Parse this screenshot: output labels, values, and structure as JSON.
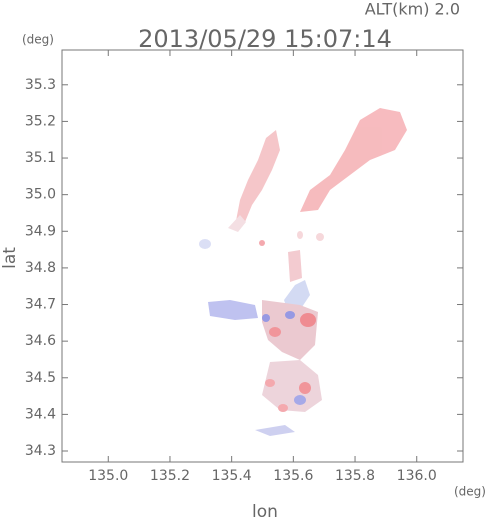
{
  "chart_data": {
    "type": "map",
    "title": "2013/05/29 15:07:14",
    "annotation": "ALT(km) 2.0",
    "y_unit": "(deg)",
    "x_unit": "(deg)",
    "xlabel": "lon",
    "ylabel": "lat",
    "xlim": [
      134.85,
      136.15
    ],
    "ylim": [
      34.27,
      35.395
    ],
    "xticks": [
      {
        "value": 135,
        "label": "135.0"
      },
      135.2,
      135.4,
      135.6,
      135.8,
      {
        "value": 136,
        "label": "136.0"
      }
    ],
    "yticks": [
      34.3,
      34.4,
      34.5,
      34.6,
      34.7,
      34.8,
      34.9,
      {
        "value": 35,
        "label": "35.0"
      },
      35.1,
      35.2,
      35.3
    ]
  }
}
